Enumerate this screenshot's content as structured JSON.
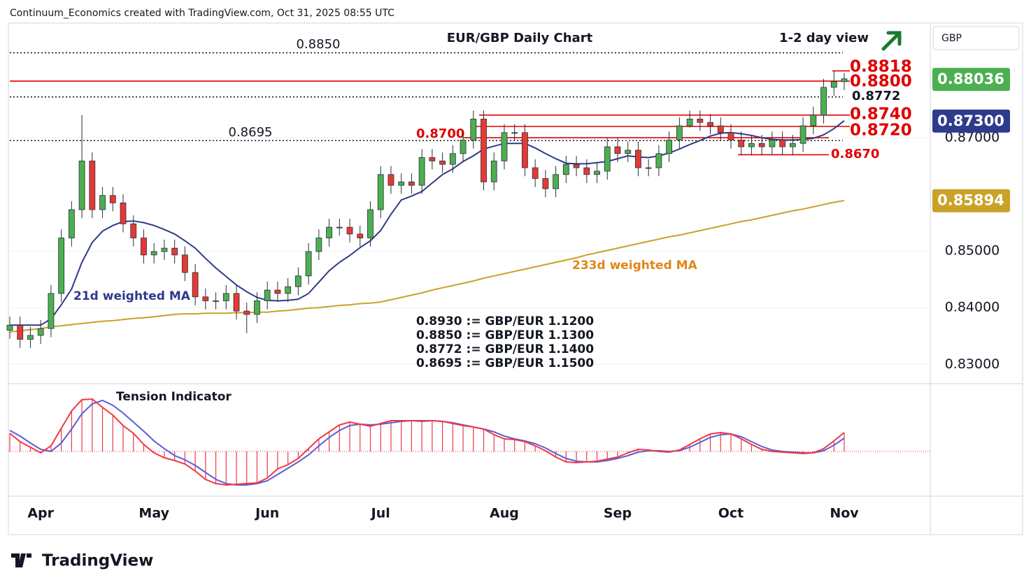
{
  "header": "Continuum_Economics created with TradingView.com, Oct 31, 2025 08:55 UTC",
  "footer": "TradingView",
  "chart_data": [
    {
      "type": "candlestick",
      "title": "EUR/GBP Daily Chart",
      "subtitle": "1-2 day view",
      "currency": "GBP",
      "categories": [
        null,
        null,
        null,
        "Apr",
        null,
        null,
        null,
        null,
        null,
        null,
        null,
        null,
        null,
        null,
        "May",
        null,
        null,
        null,
        null,
        null,
        null,
        null,
        null,
        null,
        null,
        "Jun",
        null,
        null,
        null,
        null,
        null,
        null,
        null,
        null,
        null,
        null,
        "Jul",
        null,
        null,
        null,
        null,
        null,
        null,
        null,
        null,
        null,
        null,
        null,
        "Aug",
        null,
        null,
        null,
        null,
        null,
        null,
        null,
        null,
        null,
        null,
        "Sep",
        null,
        null,
        null,
        null,
        null,
        null,
        null,
        null,
        null,
        null,
        "Oct",
        null,
        null,
        null,
        null,
        null,
        null,
        null,
        null,
        null,
        null,
        "Nov"
      ],
      "ylim": [
        0.8267,
        0.89
      ],
      "yticks": [
        {
          "value": 0.83,
          "label": "0.83000"
        },
        {
          "value": 0.84,
          "label": "0.84000"
        },
        {
          "value": 0.85,
          "label": "0.85000"
        },
        {
          "value": 0.87,
          "label": "0.87000"
        }
      ],
      "grid": true,
      "series": [
        {
          "name": "EUR/GBP",
          "up_color": "#4caf50",
          "down_color": "#e53935",
          "values": [
            [
              0.836,
              0.8384,
              0.8345,
              0.8369
            ],
            [
              0.8369,
              0.8384,
              0.8329,
              0.8344
            ],
            [
              0.8344,
              0.8366,
              0.8329,
              0.8351
            ],
            [
              0.8351,
              0.8378,
              0.8336,
              0.8363
            ],
            [
              0.8363,
              0.844,
              0.8348,
              0.8425
            ],
            [
              0.8425,
              0.8538,
              0.841,
              0.8523
            ],
            [
              0.8523,
              0.8588,
              0.8508,
              0.8573
            ],
            [
              0.8573,
              0.874,
              0.8558,
              0.8659
            ],
            [
              0.8659,
              0.8674,
              0.8558,
              0.8573
            ],
            [
              0.8573,
              0.8613,
              0.8558,
              0.8598
            ],
            [
              0.8598,
              0.8613,
              0.857,
              0.8585
            ],
            [
              0.8585,
              0.86,
              0.8533,
              0.8548
            ],
            [
              0.8548,
              0.8563,
              0.8508,
              0.8523
            ],
            [
              0.8523,
              0.8538,
              0.8478,
              0.8493
            ],
            [
              0.8493,
              0.8514,
              0.8478,
              0.8499
            ],
            [
              0.8499,
              0.852,
              0.8484,
              0.8505
            ],
            [
              0.8505,
              0.852,
              0.8478,
              0.8493
            ],
            [
              0.8493,
              0.8508,
              0.8447,
              0.8462
            ],
            [
              0.8462,
              0.8477,
              0.8404,
              0.8419
            ],
            [
              0.8419,
              0.8434,
              0.8397,
              0.8412
            ],
            [
              0.8412,
              0.8427,
              0.8397,
              0.8412
            ],
            [
              0.8412,
              0.844,
              0.8397,
              0.8425
            ],
            [
              0.8425,
              0.844,
              0.8379,
              0.8394
            ],
            [
              0.8394,
              0.8409,
              0.8355,
              0.8388
            ],
            [
              0.8388,
              0.8427,
              0.8373,
              0.8412
            ],
            [
              0.8412,
              0.8446,
              0.8397,
              0.8431
            ],
            [
              0.8431,
              0.8446,
              0.841,
              0.8425
            ],
            [
              0.8425,
              0.8452,
              0.841,
              0.8437
            ],
            [
              0.8437,
              0.8471,
              0.8422,
              0.8456
            ],
            [
              0.8456,
              0.8514,
              0.8441,
              0.8499
            ],
            [
              0.8499,
              0.8538,
              0.8484,
              0.8523
            ],
            [
              0.8523,
              0.8557,
              0.8508,
              0.8542
            ],
            [
              0.8542,
              0.8557,
              0.8527,
              0.8542
            ],
            [
              0.8542,
              0.8557,
              0.8515,
              0.853
            ],
            [
              0.853,
              0.8545,
              0.8508,
              0.8523
            ],
            [
              0.8523,
              0.8588,
              0.8508,
              0.8573
            ],
            [
              0.8573,
              0.865,
              0.8558,
              0.8635
            ],
            [
              0.8635,
              0.865,
              0.8601,
              0.8616
            ],
            [
              0.8616,
              0.8637,
              0.8601,
              0.8622
            ],
            [
              0.8622,
              0.8637,
              0.8601,
              0.8616
            ],
            [
              0.8616,
              0.868,
              0.8601,
              0.8665
            ],
            [
              0.8665,
              0.868,
              0.8644,
              0.8659
            ],
            [
              0.8659,
              0.8674,
              0.8638,
              0.8653
            ],
            [
              0.8653,
              0.8687,
              0.8638,
              0.8672
            ],
            [
              0.8672,
              0.8711,
              0.8657,
              0.8696
            ],
            [
              0.8696,
              0.8748,
              0.8681,
              0.8733
            ],
            [
              0.8733,
              0.8748,
              0.8607,
              0.8622
            ],
            [
              0.8622,
              0.8674,
              0.8607,
              0.8659
            ],
            [
              0.8659,
              0.8724,
              0.8644,
              0.8709
            ],
            [
              0.8709,
              0.8724,
              0.8694,
              0.8709
            ],
            [
              0.8709,
              0.8724,
              0.8632,
              0.8647
            ],
            [
              0.8647,
              0.8662,
              0.8613,
              0.8628
            ],
            [
              0.8628,
              0.8643,
              0.8595,
              0.861
            ],
            [
              0.861,
              0.865,
              0.8595,
              0.8635
            ],
            [
              0.8635,
              0.8668,
              0.862,
              0.8653
            ],
            [
              0.8653,
              0.8668,
              0.8632,
              0.8647
            ],
            [
              0.8647,
              0.8662,
              0.862,
              0.8635
            ],
            [
              0.8635,
              0.8656,
              0.862,
              0.8641
            ],
            [
              0.8641,
              0.8699,
              0.8626,
              0.8684
            ],
            [
              0.8684,
              0.8699,
              0.8657,
              0.8672
            ],
            [
              0.8672,
              0.8693,
              0.8657,
              0.8678
            ],
            [
              0.8678,
              0.8693,
              0.8632,
              0.8647
            ],
            [
              0.8647,
              0.8662,
              0.8632,
              0.8647
            ],
            [
              0.8647,
              0.8687,
              0.8632,
              0.8672
            ],
            [
              0.8672,
              0.8711,
              0.8657,
              0.8696
            ],
            [
              0.8696,
              0.8736,
              0.8681,
              0.8721
            ],
            [
              0.8721,
              0.8748,
              0.8718,
              0.8733
            ],
            [
              0.8733,
              0.8748,
              0.8712,
              0.8727
            ],
            [
              0.8727,
              0.8742,
              0.8706,
              0.8721
            ],
            [
              0.8721,
              0.8736,
              0.8694,
              0.8709
            ],
            [
              0.8709,
              0.8724,
              0.8681,
              0.8696
            ],
            [
              0.8696,
              0.8711,
              0.8669,
              0.8684
            ],
            [
              0.8684,
              0.8705,
              0.8669,
              0.869
            ],
            [
              0.869,
              0.8705,
              0.8669,
              0.8684
            ],
            [
              0.8684,
              0.8711,
              0.8669,
              0.8696
            ],
            [
              0.8696,
              0.8711,
              0.8669,
              0.8684
            ],
            [
              0.8684,
              0.8705,
              0.8669,
              0.869
            ],
            [
              0.869,
              0.8736,
              0.8675,
              0.8721
            ],
            [
              0.8721,
              0.8755,
              0.8706,
              0.874
            ],
            [
              0.874,
              0.8804,
              0.8725,
              0.8789
            ],
            [
              0.8789,
              0.8818,
              0.8774,
              0.8799
            ],
            [
              0.8799,
              0.8814,
              0.8784,
              0.8804
            ]
          ]
        },
        {
          "name": "21d weighted MA",
          "color": "#2e3a8c",
          "label_color": "#2e3a8c",
          "values": [
            0.8369,
            0.8369,
            0.8369,
            0.8369,
            0.838,
            0.8405,
            0.8433,
            0.848,
            0.8515,
            0.8535,
            0.8545,
            0.8552,
            0.8553,
            0.855,
            0.8545,
            0.8538,
            0.853,
            0.8518,
            0.8505,
            0.8487,
            0.847,
            0.8455,
            0.844,
            0.8428,
            0.8418,
            0.8413,
            0.8412,
            0.8413,
            0.8415,
            0.8425,
            0.8445,
            0.8465,
            0.848,
            0.8492,
            0.8506,
            0.8518,
            0.8536,
            0.8565,
            0.859,
            0.8597,
            0.8605,
            0.862,
            0.8635,
            0.8645,
            0.8658,
            0.8668,
            0.868,
            0.8685,
            0.869,
            0.869,
            0.869,
            0.8682,
            0.8672,
            0.8663,
            0.8655,
            0.8654,
            0.8654,
            0.8656,
            0.8658,
            0.8663,
            0.8668,
            0.8666,
            0.8665,
            0.8668,
            0.8673,
            0.868,
            0.8688,
            0.8695,
            0.8703,
            0.8708,
            0.8709,
            0.8707,
            0.8704,
            0.87,
            0.8697,
            0.8696,
            0.8696,
            0.8697,
            0.8699,
            0.8705,
            0.8716,
            0.873
          ],
          "last": {
            "value": 0.873,
            "label": "0.87300"
          }
        },
        {
          "name": "233d weighted MA",
          "color": "#c9a227",
          "label_color": "#e0861a",
          "values": [
            0.8357,
            0.8359,
            0.8361,
            0.8363,
            0.8366,
            0.8368,
            0.837,
            0.8372,
            0.8374,
            0.8376,
            0.8377,
            0.8379,
            0.8381,
            0.8382,
            0.8384,
            0.8386,
            0.8388,
            0.8389,
            0.8389,
            0.839,
            0.839,
            0.839,
            0.8391,
            0.8391,
            0.8392,
            0.8392,
            0.8394,
            0.8395,
            0.8397,
            0.8399,
            0.84,
            0.8402,
            0.8404,
            0.8405,
            0.8407,
            0.8408,
            0.841,
            0.8414,
            0.8418,
            0.8422,
            0.8426,
            0.8431,
            0.8435,
            0.8439,
            0.8443,
            0.8447,
            0.8452,
            0.8456,
            0.846,
            0.8464,
            0.8468,
            0.8472,
            0.8476,
            0.848,
            0.8484,
            0.8488,
            0.8493,
            0.8497,
            0.8501,
            0.8505,
            0.8509,
            0.8513,
            0.8517,
            0.8521,
            0.8525,
            0.8528,
            0.8532,
            0.8536,
            0.854,
            0.8544,
            0.8548,
            0.8552,
            0.8555,
            0.8559,
            0.8563,
            0.8567,
            0.8571,
            0.8574,
            0.8578,
            0.8582,
            0.8586,
            0.8589
          ],
          "last": {
            "value": 0.85894,
            "label": "0.85894"
          }
        }
      ],
      "last_price": {
        "value": 0.88036,
        "label": "0.88036",
        "color": "#4caf50"
      },
      "levels": [
        {
          "value": 0.885,
          "label": "0.8850",
          "color": "#131722",
          "style": "dotted"
        },
        {
          "value": 0.8818,
          "label": "0.8818",
          "color": "#e00000",
          "style": "solid"
        },
        {
          "value": 0.88,
          "label": "0.8800",
          "color": "#e00000",
          "style": "solid"
        },
        {
          "value": 0.8772,
          "label": "0.8772",
          "color": "#131722",
          "style": "dotted"
        },
        {
          "value": 0.874,
          "label": "0.8740",
          "color": "#e00000",
          "style": "solid"
        },
        {
          "value": 0.872,
          "label": "0.8720",
          "color": "#e00000",
          "style": "solid"
        },
        {
          "value": 0.87,
          "label": "0.8700",
          "color": "#e00000",
          "style": "solid"
        },
        {
          "value": 0.8695,
          "label": "0.8695",
          "color": "#131722",
          "style": "dotted"
        },
        {
          "value": 0.867,
          "label": "0.8670",
          "color": "#e00000",
          "style": "solid"
        }
      ],
      "notes": [
        "0.8930 := GBP/EUR 1.1200",
        "0.8850 := GBP/EUR 1.1300",
        "0.8772 := GBP/EUR 1.1400",
        "0.8695 := GBP/EUR 1.1500"
      ]
    },
    {
      "type": "indicator",
      "title": "Tension Indicator",
      "ylim": [
        -62,
        91
      ],
      "series": [
        {
          "color": "#f23645",
          "histogram": true,
          "values": [
            26,
            14,
            6,
            -2,
            8,
            33,
            58,
            74,
            75,
            63,
            52,
            37,
            26,
            10,
            -2,
            -9,
            -13,
            -18,
            -28,
            -40,
            -46,
            -48,
            -47,
            -46,
            -45,
            -38,
            -25,
            -19,
            -10,
            4,
            18,
            28,
            38,
            42,
            39,
            36,
            40,
            44,
            44,
            44,
            43,
            44,
            43,
            40,
            37,
            35,
            32,
            24,
            18,
            17,
            14,
            8,
            1,
            -8,
            -15,
            -16,
            -15,
            -14,
            -11,
            -8,
            -2,
            3,
            2,
            0,
            -1,
            2,
            10,
            18,
            25,
            27,
            25,
            18,
            10,
            3,
            0,
            -1,
            -2,
            -3,
            -2,
            4,
            15,
            27
          ]
        },
        {
          "color": "#5b5fd6",
          "histogram": false,
          "values": [
            30,
            22,
            12,
            3,
            0,
            12,
            32,
            54,
            68,
            73,
            66,
            55,
            42,
            29,
            15,
            4,
            -6,
            -12,
            -20,
            -30,
            -40,
            -46,
            -48,
            -48,
            -46,
            -42,
            -33,
            -24,
            -15,
            -5,
            8,
            20,
            30,
            37,
            39,
            38,
            39,
            41,
            43,
            44,
            44,
            44,
            43,
            41,
            38,
            35,
            32,
            28,
            22,
            18,
            15,
            11,
            5,
            -3,
            -10,
            -14,
            -15,
            -15,
            -13,
            -10,
            -6,
            -1,
            1,
            1,
            0,
            1,
            6,
            13,
            20,
            24,
            25,
            21,
            14,
            7,
            2,
            0,
            -1,
            -2,
            -2,
            1,
            9,
            19
          ]
        }
      ]
    }
  ]
}
